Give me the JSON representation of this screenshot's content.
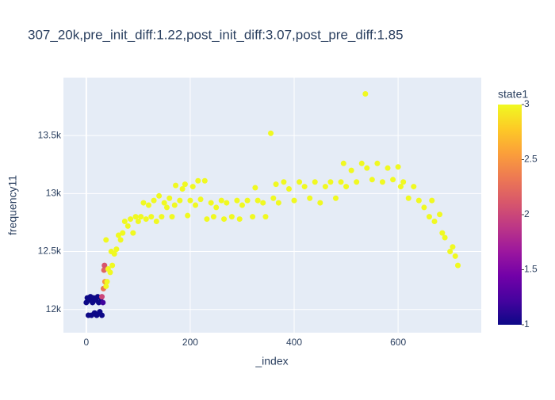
{
  "chart_data": {
    "type": "scatter",
    "title": "307_20k,pre_init_diff:1.22,post_init_diff:3.07,post_pre_diff:1.85",
    "xlabel": "_index",
    "ylabel": "frequency11",
    "xlim": [
      -44,
      760
    ],
    "ylim": [
      11800,
      14000
    ],
    "xticks": [
      0,
      200,
      400,
      600
    ],
    "yticks": [
      {
        "value": 12000,
        "label": "12k"
      },
      {
        "value": 12500,
        "label": "12.5k"
      },
      {
        "value": 13000,
        "label": "13k"
      },
      {
        "value": 13500,
        "label": "13.5k"
      }
    ],
    "grid": true,
    "x": [
      0,
      2,
      4,
      6,
      8,
      10,
      12,
      14,
      16,
      18,
      20,
      22,
      24,
      26,
      28,
      30,
      32,
      30,
      33,
      34,
      35,
      36,
      38,
      40,
      38,
      42,
      46,
      50,
      48,
      54,
      58,
      62,
      66,
      70,
      74,
      80,
      85,
      90,
      95,
      100,
      105,
      110,
      115,
      120,
      125,
      130,
      135,
      140,
      145,
      150,
      155,
      160,
      165,
      170,
      172,
      180,
      185,
      190,
      195,
      200,
      205,
      210,
      215,
      220,
      228,
      232,
      240,
      245,
      250,
      260,
      265,
      270,
      280,
      290,
      295,
      300,
      310,
      320,
      325,
      330,
      340,
      345,
      355,
      360,
      365,
      370,
      380,
      390,
      400,
      410,
      420,
      430,
      440,
      450,
      460,
      470,
      480,
      490,
      495,
      500,
      510,
      520,
      530,
      537,
      540,
      550,
      560,
      570,
      580,
      590,
      600,
      605,
      610,
      620,
      630,
      640,
      650,
      660,
      665,
      670,
      680,
      685,
      690,
      700,
      705,
      710,
      715
    ],
    "y": [
      12060,
      12100,
      11950,
      12080,
      12110,
      11950,
      12060,
      12100,
      11970,
      12080,
      11950,
      12110,
      12060,
      11980,
      12100,
      11950,
      12060,
      12110,
      12180,
      12340,
      12380,
      12240,
      12200,
      12240,
      12600,
      12350,
      12320,
      12380,
      12500,
      12480,
      12520,
      12640,
      12600,
      12660,
      12760,
      12720,
      12780,
      12660,
      12800,
      12760,
      12800,
      12920,
      12780,
      12900,
      12800,
      12940,
      12760,
      12980,
      12800,
      12920,
      12880,
      12960,
      12800,
      12900,
      13070,
      12940,
      13040,
      13080,
      12810,
      12940,
      13060,
      12900,
      13110,
      12950,
      13110,
      12780,
      12920,
      12800,
      12880,
      12940,
      12780,
      12920,
      12800,
      12940,
      12780,
      12900,
      12940,
      12800,
      13050,
      12940,
      12920,
      12800,
      13520,
      12960,
      13080,
      12920,
      13100,
      13040,
      12940,
      13100,
      13060,
      12960,
      13100,
      12920,
      13060,
      13100,
      12960,
      13100,
      13260,
      13060,
      13200,
      13100,
      13260,
      13860,
      13220,
      13120,
      13260,
      13100,
      13220,
      13120,
      13230,
      13060,
      13100,
      12960,
      13060,
      12940,
      12880,
      12800,
      12940,
      12760,
      12820,
      12660,
      12620,
      12500,
      12540,
      12460,
      12380
    ],
    "colorbar": {
      "title": "state1",
      "lim": [
        1,
        3
      ],
      "ticks": [
        1,
        1.5,
        2,
        2.5,
        3
      ],
      "colorscale": [
        "#0d0887",
        "#46039f",
        "#7201a8",
        "#9c179e",
        "#bd3786",
        "#d8576b",
        "#ed7953",
        "#fb9f3a",
        "#fdca26",
        "#f0f921"
      ],
      "values": [
        1,
        1,
        1,
        1,
        1,
        1,
        1,
        1,
        1,
        1,
        1,
        1,
        1,
        1,
        1,
        1,
        1.2,
        2,
        2.3,
        2.2,
        2.1,
        2.5,
        3,
        3,
        3,
        3,
        3,
        3,
        3,
        3,
        3,
        3,
        3,
        3,
        3,
        3,
        3,
        3,
        3,
        3,
        3,
        3,
        3,
        3,
        3,
        3,
        3,
        3,
        3,
        3,
        3,
        3,
        3,
        3,
        3,
        3,
        3,
        3,
        3,
        3,
        3,
        3,
        3,
        3,
        3,
        3,
        3,
        3,
        3,
        3,
        3,
        3,
        3,
        3,
        3,
        3,
        3,
        3,
        3,
        3,
        3,
        3,
        3,
        3,
        3,
        3,
        3,
        3,
        3,
        3,
        3,
        3,
        3,
        3,
        3,
        3,
        3,
        3,
        3,
        3,
        3,
        3,
        3,
        3,
        3,
        3,
        3,
        3,
        3,
        3,
        3,
        3,
        3,
        3,
        3,
        3,
        3,
        3,
        3,
        3,
        3,
        3,
        3,
        3,
        3,
        3,
        3
      ]
    }
  }
}
